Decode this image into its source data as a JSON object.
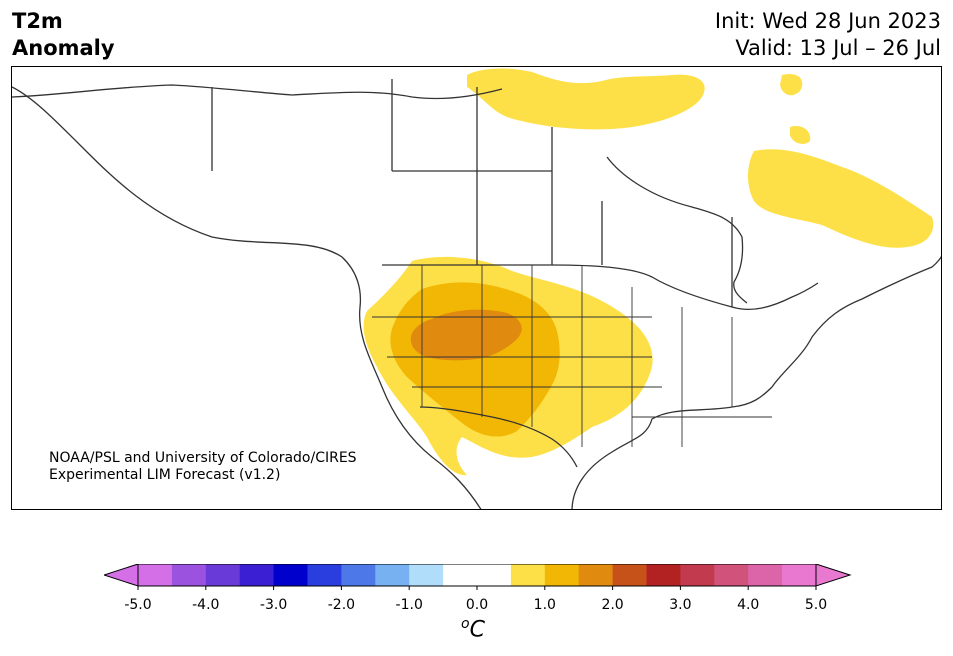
{
  "header": {
    "title_line1": "T2m",
    "title_line2": "Anomaly",
    "init": "Init: Wed 28 Jun 2023",
    "valid": "Valid: 13 Jul – 26 Jul"
  },
  "credit": {
    "line1": "NOAA/PSL and University of Colorado/CIRES",
    "line2": "Experimental LIM Forecast (v1.2)"
  },
  "colorbar": {
    "ticks": [
      "-5.0",
      "-4.0",
      "-3.0",
      "-2.0",
      "-1.0",
      "0.0",
      "1.0",
      "2.0",
      "3.0",
      "4.0",
      "5.0"
    ],
    "unit_base": "C",
    "unit_sup": "o",
    "colors": [
      "#d46fe8",
      "#9b52de",
      "#6a3ad8",
      "#3b1fd2",
      "#0000cc",
      "#2a3ee0",
      "#4d79e8",
      "#77b1f2",
      "#b0defa",
      "#ffffff",
      "#ffffff",
      "#fde047",
      "#f2b705",
      "#e08a10",
      "#c6521a",
      "#b22222",
      "#c23a4e",
      "#d1527a",
      "#dc64a8",
      "#e878d0"
    ],
    "min_color": "#d46fe8",
    "max_color": "#e878d0"
  },
  "map": {
    "land_color": "#ffffff",
    "ocean_color": "#ffffff",
    "border_color": "#333333",
    "anomaly_levels": [
      {
        "label": "0.5–1.0",
        "color": "#fde047"
      },
      {
        "label": "1.0–1.5",
        "color": "#f2b705"
      },
      {
        "label": "1.5–2.0",
        "color": "#e08a10"
      }
    ]
  }
}
